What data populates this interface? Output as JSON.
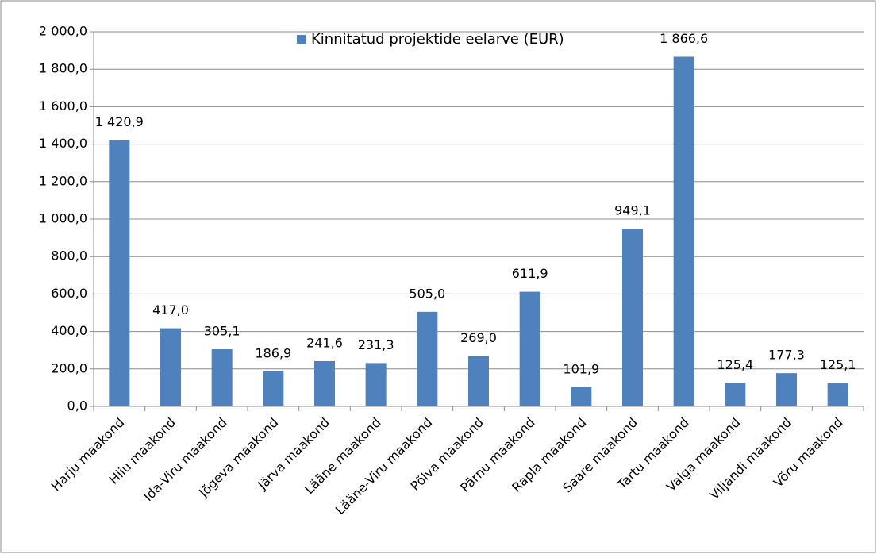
{
  "chart_data": {
    "type": "bar",
    "categories": [
      "Harju maakond",
      "Hiiu maakond",
      "Ida-Viru maakond",
      "Jõgeva maakond",
      "Järva maakond",
      "Lääne maakond",
      "Lääne-Viru maakond",
      "Põlva maakond",
      "Pärnu maakond",
      "Rapla maakond",
      "Saare maakond",
      "Tartu maakond",
      "Valga maakond",
      "Viljandi maakond",
      "Võru maakond"
    ],
    "series": [
      {
        "name": "Kinnitatud projektide eelarve (EUR)",
        "color": "#4f81bd",
        "values": [
          1420.9,
          417.0,
          305.1,
          186.9,
          241.6,
          231.3,
          505.0,
          269.0,
          611.9,
          101.9,
          949.1,
          1866.6,
          125.4,
          177.3,
          125.1
        ],
        "value_labels": [
          "1 420,9",
          "417,0",
          "305,1",
          "186,9",
          "241,6",
          "231,3",
          "505,0",
          "269,0",
          "611,9",
          "101,9",
          "949,1",
          "1 866,6",
          "125,4",
          "177,3",
          "125,1"
        ]
      }
    ],
    "ylim": [
      0,
      2000
    ],
    "yticks": [
      {
        "value": 0,
        "label": "0,0"
      },
      {
        "value": 200,
        "label": "200,0"
      },
      {
        "value": 400,
        "label": "400,0"
      },
      {
        "value": 600,
        "label": "600,0"
      },
      {
        "value": 800,
        "label": "800,0"
      },
      {
        "value": 1000,
        "label": "1 000,0"
      },
      {
        "value": 1200,
        "label": "1 200,0"
      },
      {
        "value": 1400,
        "label": "1 400,0"
      },
      {
        "value": 1600,
        "label": "1 600,0"
      },
      {
        "value": 1800,
        "label": "1 800,0"
      },
      {
        "value": 2000,
        "label": "2 000,0"
      }
    ],
    "grid": true,
    "legend": "top"
  }
}
